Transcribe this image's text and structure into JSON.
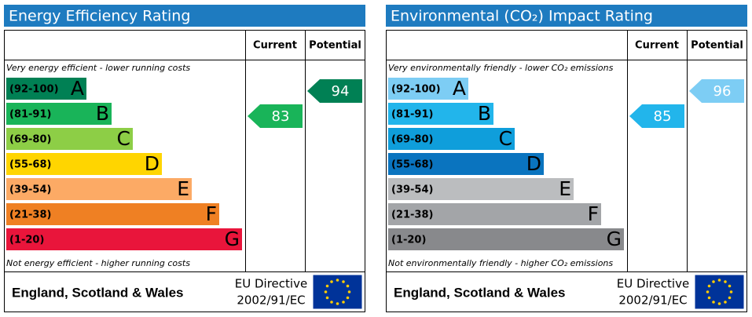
{
  "panels": [
    {
      "title": "Energy Efficiency Rating",
      "col_current": "Current",
      "col_potential": "Potential",
      "top_note": "Very energy efficient - lower running costs",
      "bottom_note": "Not energy efficient - higher running costs",
      "bands": [
        {
          "range": "(92-100)",
          "letter": "A",
          "color": "#008054"
        },
        {
          "range": "(81-91)",
          "letter": "B",
          "color": "#19b459"
        },
        {
          "range": "(69-80)",
          "letter": "C",
          "color": "#8dce46"
        },
        {
          "range": "(55-68)",
          "letter": "D",
          "color": "#ffd500"
        },
        {
          "range": "(39-54)",
          "letter": "E",
          "color": "#fcaa65"
        },
        {
          "range": "(21-38)",
          "letter": "F",
          "color": "#ef8023"
        },
        {
          "range": "(1-20)",
          "letter": "G",
          "color": "#e9153b"
        }
      ],
      "current": 83,
      "potential": 94,
      "footer": "England, Scotland & Wales",
      "directive": [
        "EU Directive",
        "2002/91/EC"
      ]
    },
    {
      "title": "Environmental (CO₂) Impact Rating",
      "col_current": "Current",
      "col_potential": "Potential",
      "top_note": "Very environmentally friendly - lower CO₂ emissions",
      "bottom_note": "Not environmentally friendly - higher CO₂ emissions",
      "bands": [
        {
          "range": "(92-100)",
          "letter": "A",
          "color": "#7dcdf4"
        },
        {
          "range": "(81-91)",
          "letter": "B",
          "color": "#22b5eb"
        },
        {
          "range": "(69-80)",
          "letter": "C",
          "color": "#0f9edb"
        },
        {
          "range": "(55-68)",
          "letter": "D",
          "color": "#0a74bf"
        },
        {
          "range": "(39-54)",
          "letter": "E",
          "color": "#bbbdbf"
        },
        {
          "range": "(21-38)",
          "letter": "F",
          "color": "#a3a5a8"
        },
        {
          "range": "(1-20)",
          "letter": "G",
          "color": "#88898c"
        }
      ],
      "current": 85,
      "potential": 96,
      "footer": "England, Scotland & Wales",
      "directive": [
        "EU Directive",
        "2002/91/EC"
      ]
    }
  ]
}
